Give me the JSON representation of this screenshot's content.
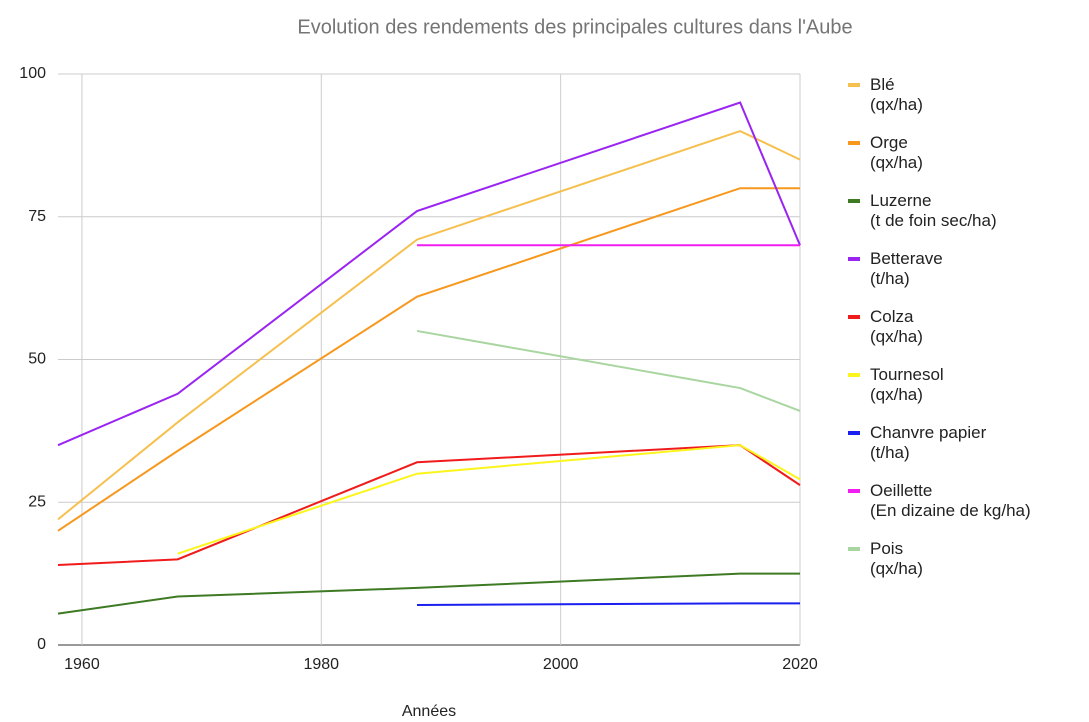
{
  "chart_data": {
    "type": "line",
    "title": "Evolution des rendements des principales cultures dans l'Aube",
    "x_label": "Années",
    "x": [
      1958,
      1968,
      1988,
      2015,
      2020
    ],
    "xlim": [
      1958,
      2020
    ],
    "xticks": [
      1960,
      1980,
      2000,
      2020
    ],
    "ylim": [
      0,
      100
    ],
    "yticks": [
      0,
      25,
      50,
      75,
      100
    ],
    "grid": true,
    "legend": "right",
    "series": [
      {
        "name": "Blé\n(qx/ha)",
        "color": "#f6c04e",
        "values": [
          22,
          39,
          71,
          90,
          85
        ]
      },
      {
        "name": "Orge\n(qx/ha)",
        "color": "#f7981d",
        "values": [
          20,
          34,
          61,
          80,
          80
        ]
      },
      {
        "name": "Luzerne\n(t de foin sec/ha)",
        "color": "#3e7a23",
        "values": [
          5.5,
          8.5,
          10,
          12.5,
          12.5
        ]
      },
      {
        "name": "Betterave\n(t/ha)",
        "color": "#9a24f2",
        "values": [
          35,
          44,
          76,
          95,
          70
        ]
      },
      {
        "name": "Colza\n(qx/ha)",
        "color": "#f01b1b",
        "values": [
          14,
          15,
          32,
          35,
          28
        ]
      },
      {
        "name": "Tournesol\n(qx/ha)",
        "color": "#fbf51c",
        "values": [
          null,
          16,
          30,
          35,
          29
        ]
      },
      {
        "name": "Chanvre papier\n(t/ha)",
        "color": "#1b1ff0",
        "values": [
          null,
          null,
          7,
          7.3,
          7.3
        ]
      },
      {
        "name": "Oeillette\n(En dizaine de kg/ha)",
        "color": "#f01ef0",
        "values": [
          null,
          null,
          70,
          70,
          70
        ]
      },
      {
        "name": "Pois\n(qx/ha)",
        "color": "#a9d6a0",
        "values": [
          null,
          null,
          55,
          45,
          41
        ]
      }
    ]
  }
}
